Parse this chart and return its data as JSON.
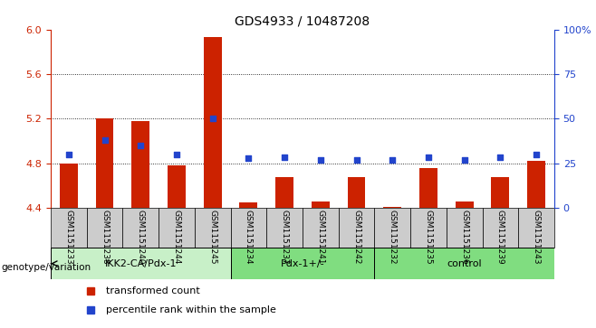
{
  "title": "GDS4933 / 10487208",
  "samples": [
    "GSM1151233",
    "GSM1151238",
    "GSM1151240",
    "GSM1151244",
    "GSM1151245",
    "GSM1151234",
    "GSM1151237",
    "GSM1151241",
    "GSM1151242",
    "GSM1151232",
    "GSM1151235",
    "GSM1151236",
    "GSM1151239",
    "GSM1151243"
  ],
  "red_values": [
    4.8,
    5.2,
    5.18,
    4.78,
    5.93,
    4.45,
    4.68,
    4.46,
    4.68,
    4.41,
    4.76,
    4.46,
    4.68,
    4.82
  ],
  "blue_values": [
    4.875,
    5.01,
    4.96,
    4.875,
    5.2,
    4.845,
    4.855,
    4.83,
    4.83,
    4.83,
    4.855,
    4.83,
    4.855,
    4.875
  ],
  "groups": [
    {
      "label": "IKK2-CA/Pdx-1",
      "start": 0,
      "end": 5,
      "color": "#c8f0c8"
    },
    {
      "label": "Pdx-1+/-",
      "start": 5,
      "end": 9,
      "color": "#80dd80"
    },
    {
      "label": "control",
      "start": 9,
      "end": 14,
      "color": "#80dd80"
    }
  ],
  "ymin": 4.4,
  "ymax": 6.0,
  "yticks_left": [
    4.4,
    4.8,
    5.2,
    5.6,
    6.0
  ],
  "yticks_right": [
    4.4,
    4.8,
    5.2,
    5.6,
    6.0
  ],
  "y2_labels": [
    "0",
    "25",
    "50",
    "75",
    "100%"
  ],
  "bar_color": "#cc2200",
  "dot_color": "#2244cc",
  "bg_color": "#cccccc",
  "plot_bg": "#ffffff",
  "label_genotype": "genotype/variation",
  "legend_red": "transformed count",
  "legend_blue": "percentile rank within the sample"
}
